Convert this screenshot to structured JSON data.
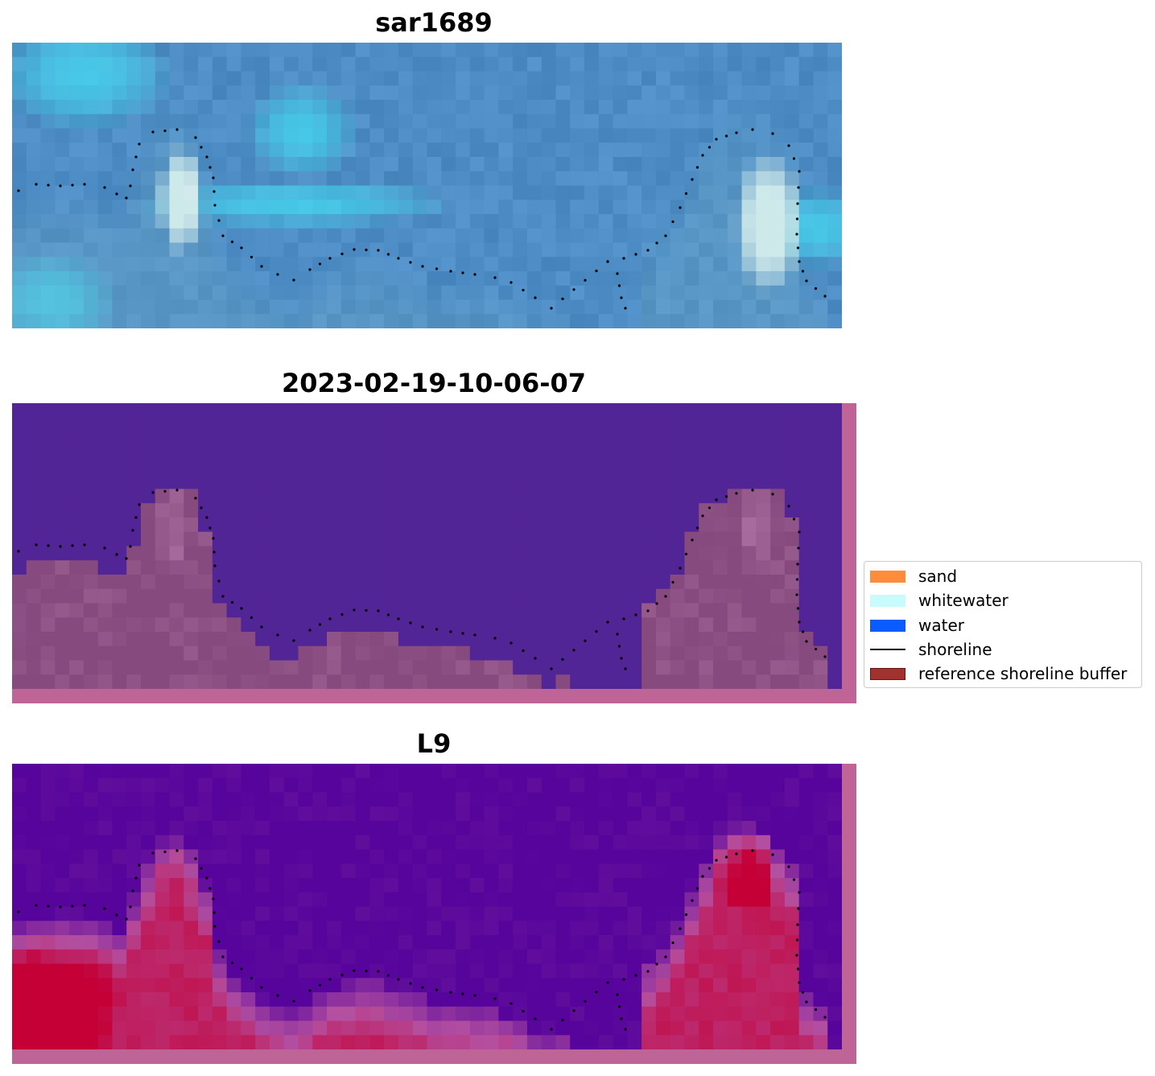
{
  "panels": [
    {
      "title": "sar1689",
      "kind": "rgb"
    },
    {
      "title": "2023-02-19-10-06-07",
      "kind": "classification"
    },
    {
      "title": "L9",
      "kind": "probability"
    }
  ],
  "legend": {
    "items": [
      {
        "label": "sand",
        "type": "patch",
        "color": "#ff8c3a"
      },
      {
        "label": "whitewater",
        "type": "patch",
        "color": "#c8fcfc"
      },
      {
        "label": "water",
        "type": "patch",
        "color": "#0a5cff"
      },
      {
        "label": "shoreline",
        "type": "line",
        "color": "#000000"
      },
      {
        "label": "reference shoreline buffer",
        "type": "patch",
        "color": "#a0332f",
        "edge": "#6b1412"
      }
    ]
  },
  "colors": {
    "buffer_overlay": "#be6496",
    "water_class": "#522596",
    "sand_class": "#874a7e",
    "probability_low": "#56049c",
    "probability_high": "#c40036"
  }
}
